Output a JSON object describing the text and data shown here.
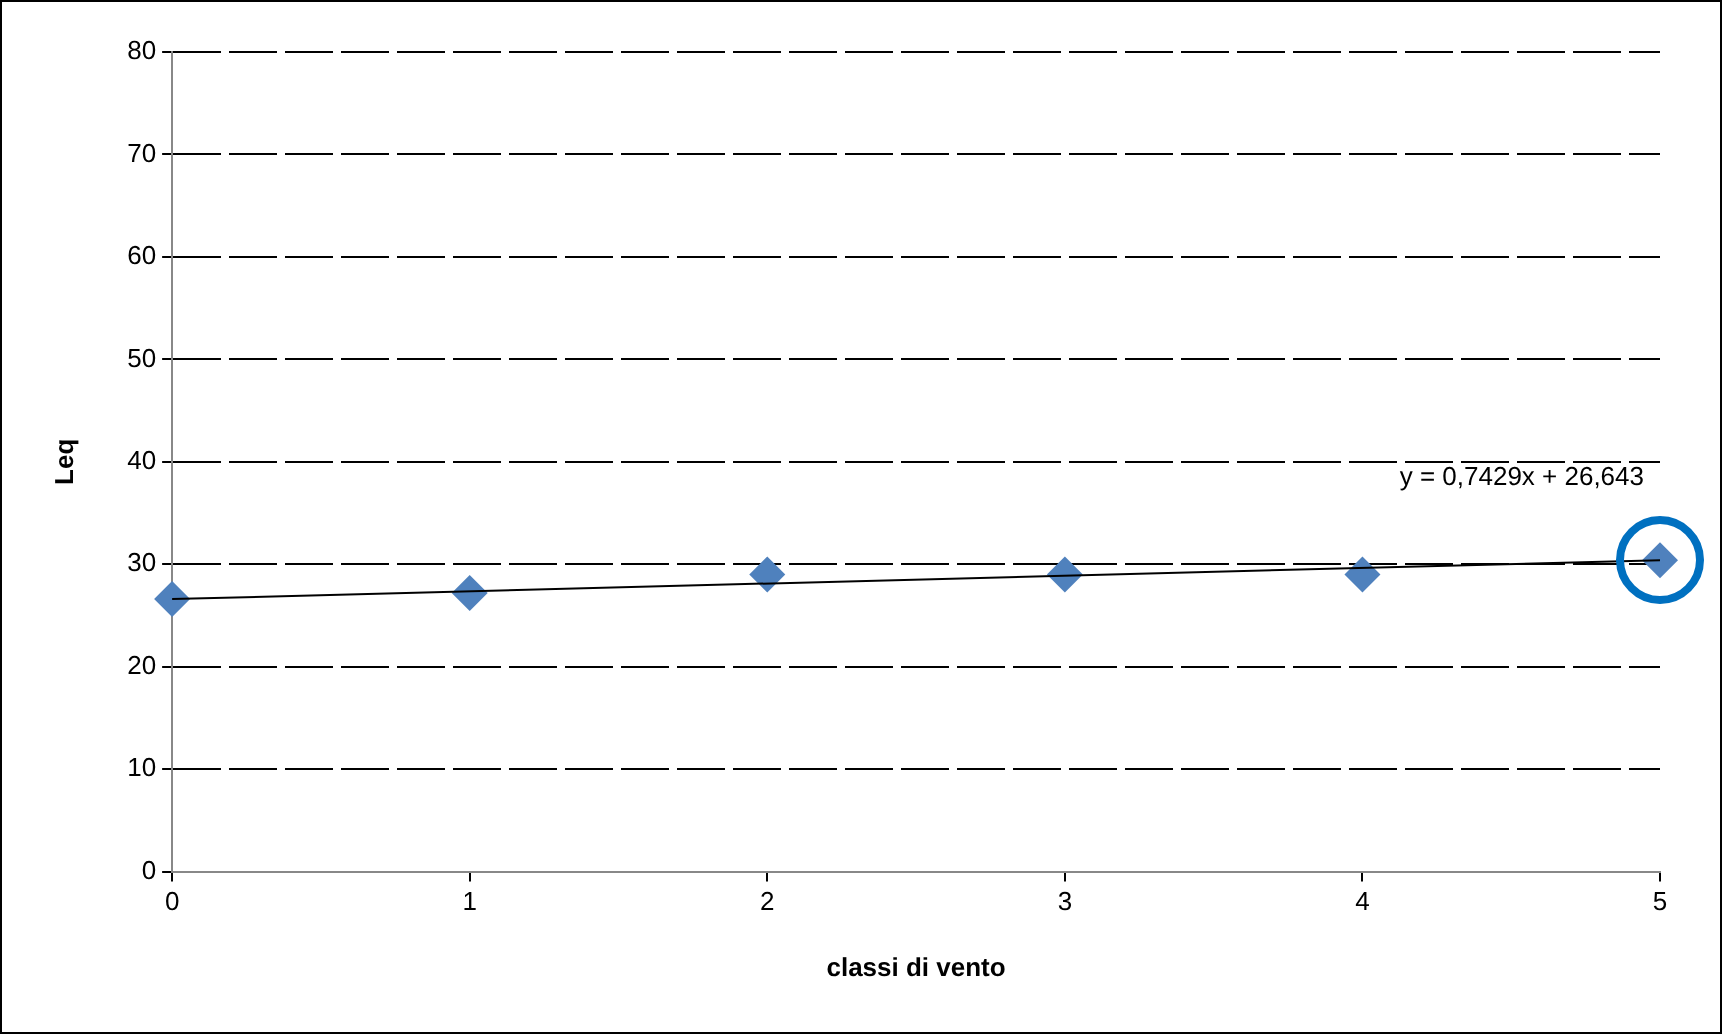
{
  "chart_data": {
    "type": "scatter",
    "xlabel": "classi di vento",
    "ylabel": "Leq",
    "x": [
      0,
      1,
      2,
      3,
      4,
      5
    ],
    "series": [
      {
        "color": "#4f81bd",
        "values": [
          26.6,
          27.2,
          29.0,
          29.0,
          29.0,
          30.4
        ],
        "marker": "diamond"
      },
      {
        "type": "line",
        "color": "#000000",
        "x": [
          0,
          5
        ],
        "values": [
          26.6,
          30.4
        ]
      }
    ],
    "xlim": [
      0,
      5
    ],
    "xticks": [
      0,
      1,
      2,
      3,
      4,
      5
    ],
    "ylim": [
      0,
      80
    ],
    "yticks": [
      0,
      10,
      20,
      30,
      40,
      50,
      60,
      70,
      80
    ],
    "grid": "y",
    "legend": false,
    "annotations": [
      "y = 0,7429x + 26,643"
    ]
  }
}
